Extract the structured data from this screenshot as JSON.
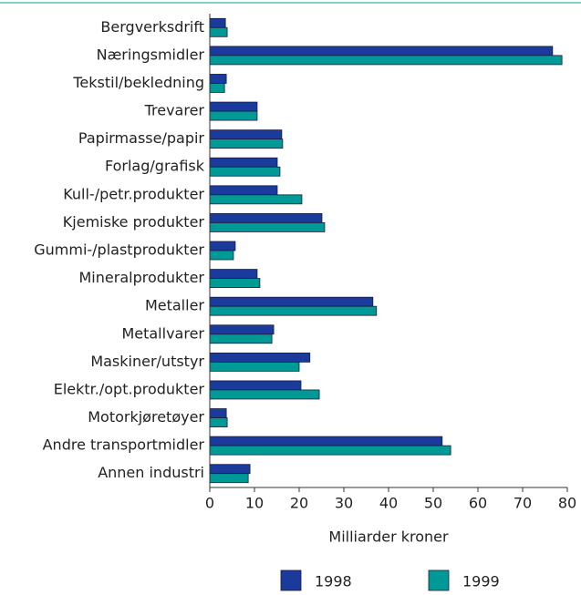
{
  "chart_data": {
    "type": "barh",
    "categories": [
      "Bergverksdrift",
      "Næringsmidler",
      "Tekstil/bekledning",
      "Trevarer",
      "Papirmasse/papir",
      "Forlag/grafisk",
      "Kull-/petr.produkter",
      "Kjemiske produkter",
      "Gummi-/plastprodukter",
      "Mineralprodukter",
      "Metaller",
      "Metallvarer",
      "Maskiner/utstyr",
      "Elektr./opt.produkter",
      "Motorkjøretøyer",
      "Andre transportmidler",
      "Annen industri"
    ],
    "series": [
      {
        "name": "1998",
        "color": "#1a3a9c",
        "values": [
          3.5,
          76.7,
          3.7,
          10.6,
          16.1,
          15.1,
          15.1,
          25.1,
          5.7,
          10.6,
          36.5,
          14.3,
          22.4,
          20.4,
          3.7,
          52.0,
          9.0
        ]
      },
      {
        "name": "1999",
        "color": "#009a96",
        "values": [
          3.9,
          78.8,
          3.3,
          10.6,
          16.3,
          15.7,
          20.6,
          25.7,
          5.3,
          11.2,
          37.3,
          13.9,
          20.0,
          24.5,
          3.9,
          53.9,
          8.6
        ]
      }
    ],
    "xlabel": "Milliarder kroner",
    "xlim": [
      0,
      80
    ],
    "xticks": [
      0,
      10,
      20,
      30,
      40,
      50,
      60,
      70,
      80
    ],
    "legend": "bottom"
  }
}
